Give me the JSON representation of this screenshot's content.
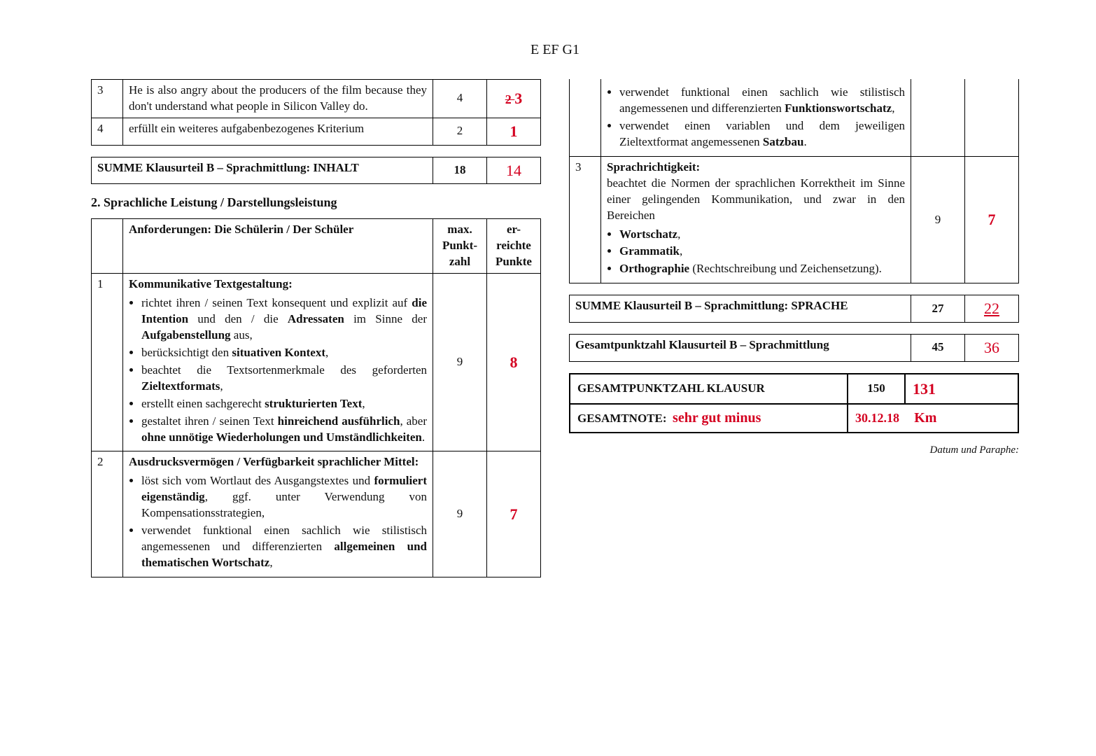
{
  "header": "E EF G1",
  "left": {
    "top_rows": [
      {
        "n": "3",
        "text": "He is also angry about the producers of the film because they don't understand what people in Silicon Valley do.",
        "max": "4",
        "score": "3",
        "strike": "2 "
      },
      {
        "n": "4",
        "text": "erfüllt ein weiteres aufgabenbezogenes Kriterium",
        "max": "2",
        "score": "1"
      }
    ],
    "sum_inhalt": {
      "label": "SUMME Klausurteil B – Sprachmittlung: INHALT",
      "max": "18",
      "score": "14"
    },
    "section2_title": "2. Sprachliche Leistung / Darstellungsleistung",
    "col_headers": {
      "req": "Anforderungen: Die Schülerin / Der Schüler",
      "max": "max. Punkt-zahl",
      "err": "er-reichte Punkte"
    },
    "row1": {
      "n": "1",
      "title": "Kommunikative Textgestaltung:",
      "bullets": [
        "richtet ihren / seinen Text konsequent und explizit auf <b>die Intention</b> und den / die <b>Adressaten</b> im Sinne der <b>Aufgabenstellung</b> aus,",
        "berücksichtigt den <b>situativen Kontext</b>,",
        "beachtet die Textsortenmerkmale des geforderten <b>Zieltextformats</b>,",
        "erstellt einen sachgerecht <b>strukturierten Text</b>,",
        "gestaltet ihren / seinen Text <b>hinreichend ausführlich</b>, aber <b>ohne unnötige Wiederholungen und Umständlichkeiten</b>."
      ],
      "max": "9",
      "score": "8"
    },
    "row2": {
      "n": "2",
      "title": "Ausdrucksvermögen / Verfügbarkeit sprachlicher Mittel:",
      "bullets": [
        "löst sich vom Wortlaut des Ausgangstextes und <b>formuliert eigenständig</b>, ggf. unter Verwendung von Kompensationsstrategien,",
        "verwendet funktional einen sachlich wie stilistisch angemessenen und differenzierten <b>allgemeinen und thematischen Wortschatz</b>,"
      ],
      "max": "9",
      "score": "7"
    }
  },
  "right": {
    "row2cont_bullets": [
      "verwendet funktional einen sachlich wie stilistisch angemessenen und differenzierten <b>Funktionswortschatz</b>,",
      "verwendet einen variablen und dem jeweiligen Zieltextformat angemessenen <b>Satzbau</b>."
    ],
    "row3": {
      "n": "3",
      "title": "Sprachrichtigkeit:",
      "intro": "beachtet die Normen der sprachlichen Korrektheit im Sinne einer gelingenden Kommunikation, und zwar in den Bereichen",
      "bullets": [
        "<b>Wortschatz</b>,",
        "<b>Grammatik</b>,",
        "<b>Orthographie</b> (Rechtschreibung und Zeichensetzung)."
      ],
      "max": "9",
      "score": "7"
    },
    "sum_sprache": {
      "label": "SUMME Klausurteil B – Sprachmittlung: SPRACHE",
      "max": "27",
      "score": "22"
    },
    "gesamt_b": {
      "label": "Gesamtpunktzahl Klausurteil B – Sprachmittlung",
      "max": "45",
      "score": "36"
    },
    "gesamt_klausur": {
      "label": "GESAMTPUNKTZAHL KLAUSUR",
      "max": "150",
      "score": "131"
    },
    "gesamtnote": {
      "label": "GESAMTNOTE:",
      "grade": "sehr gut minus",
      "date": "30.12.18",
      "sign": "Km"
    },
    "footnote": "Datum und Paraphe:"
  }
}
